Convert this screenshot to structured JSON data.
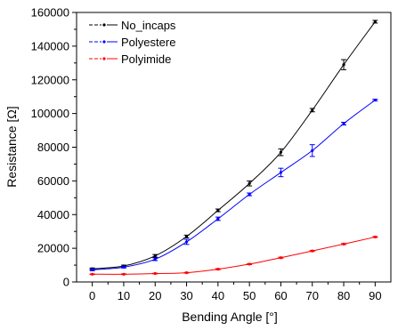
{
  "chart_data": {
    "type": "line",
    "xlabel": "Bending Angle [°]",
    "ylabel": "Resistance [Ω]",
    "xlim": [
      -5,
      95
    ],
    "ylim": [
      0,
      160000
    ],
    "x_ticks": [
      0,
      10,
      20,
      30,
      40,
      50,
      60,
      70,
      80,
      90
    ],
    "y_ticks": [
      0,
      20000,
      40000,
      60000,
      80000,
      100000,
      120000,
      140000,
      160000
    ],
    "grid": false,
    "legend_position": "top-left",
    "x": [
      0,
      10,
      20,
      30,
      40,
      50,
      60,
      70,
      80,
      90
    ],
    "series": [
      {
        "name": "No_incaps",
        "color": "#000000",
        "values": [
          7800,
          9500,
          15500,
          27000,
          42500,
          58500,
          77000,
          102000,
          129000,
          154500
        ],
        "errors": [
          500,
          500,
          800,
          800,
          800,
          1500,
          2000,
          1000,
          3000,
          800
        ]
      },
      {
        "name": "Polyestere",
        "color": "#0000ff",
        "values": [
          7200,
          8800,
          13500,
          23800,
          37500,
          52000,
          65000,
          78000,
          94000,
          108000
        ],
        "errors": [
          500,
          500,
          800,
          1500,
          1000,
          800,
          2500,
          3500,
          800,
          500
        ]
      },
      {
        "name": "Polyimide",
        "color": "#ff0000",
        "values": [
          4600,
          4600,
          5000,
          5500,
          7600,
          10600,
          14400,
          18400,
          22500,
          26700
        ],
        "errors": [
          200,
          200,
          200,
          200,
          300,
          300,
          300,
          300,
          300,
          300
        ]
      }
    ]
  }
}
